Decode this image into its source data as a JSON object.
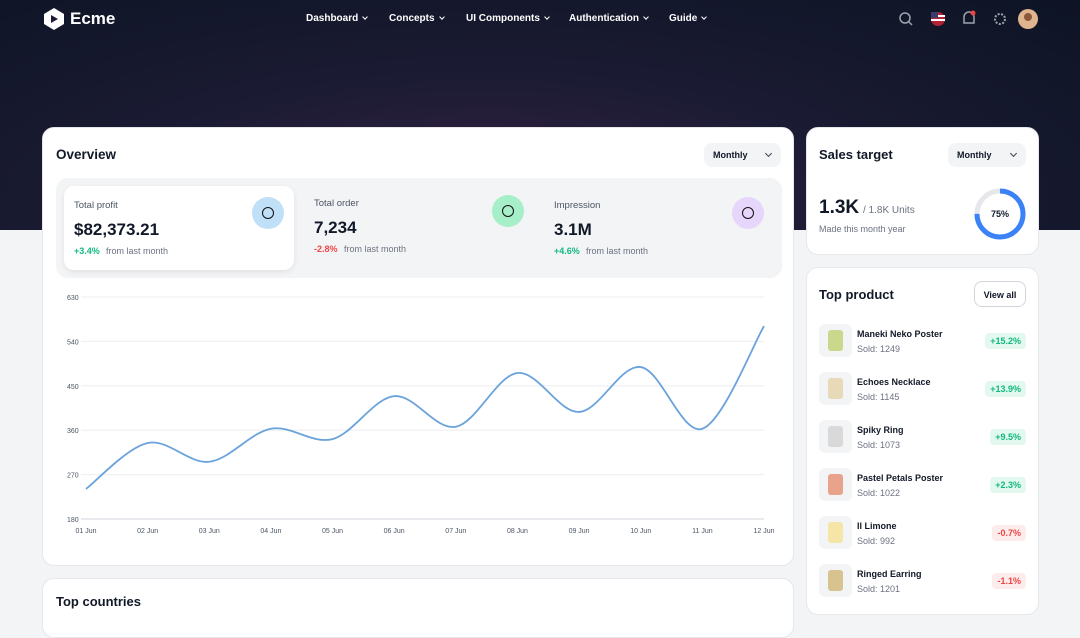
{
  "nav": {
    "brand": "Ecme",
    "items": [
      "Dashboard",
      "Concepts",
      "UI Components",
      "Authentication",
      "Guide"
    ]
  },
  "overview": {
    "title": "Overview",
    "period": "Monthly",
    "stats": [
      {
        "label": "Total profit",
        "value": "$82,373.21",
        "change": "+3.4%",
        "note": "from last month"
      },
      {
        "label": "Total order",
        "value": "7,234",
        "change": "-2.8%",
        "note": "from last month"
      },
      {
        "label": "Impression",
        "value": "3.1M",
        "change": "+4.6%",
        "note": "from last month"
      }
    ],
    "chart_data": {
      "type": "line",
      "x": [
        "01 Jun",
        "02 Jun",
        "03 Jun",
        "04 Jun",
        "05 Jun",
        "06 Jun",
        "07 Jun",
        "08 Jun",
        "09 Jun",
        "10 Jun",
        "11 Jun",
        "12 Jun"
      ],
      "values": [
        241,
        334,
        296,
        363,
        342,
        429,
        367,
        476,
        397,
        488,
        363,
        571
      ],
      "color": "#6aa3dc",
      "ylim": [
        180,
        630
      ],
      "yticks": [
        180,
        270,
        360,
        450,
        540,
        630
      ],
      "grid": true
    }
  },
  "sales_target": {
    "title": "Sales target",
    "period": "Monthly",
    "value": "1.3K",
    "total": "/ 1.8K Units",
    "note": "Made this month year",
    "progress": {
      "value": 75,
      "label": "75%"
    }
  },
  "top_product": {
    "title": "Top product",
    "action": "View all",
    "items": [
      {
        "name": "Maneki Neko Poster",
        "sold": "Sold: 1249",
        "change": "+15.2%"
      },
      {
        "name": "Echoes Necklace",
        "sold": "Sold: 1145",
        "change": "+13.9%"
      },
      {
        "name": "Spiky Ring",
        "sold": "Sold: 1073",
        "change": "+9.5%"
      },
      {
        "name": "Pastel Petals Poster",
        "sold": "Sold: 1022",
        "change": "+2.3%"
      },
      {
        "name": "Il Limone",
        "sold": "Sold: 992",
        "change": "-0.7%"
      },
      {
        "name": "Ringed Earring",
        "sold": "Sold: 1201",
        "change": "-1.1%"
      }
    ]
  },
  "top_countries": {
    "title": "Top countries"
  }
}
